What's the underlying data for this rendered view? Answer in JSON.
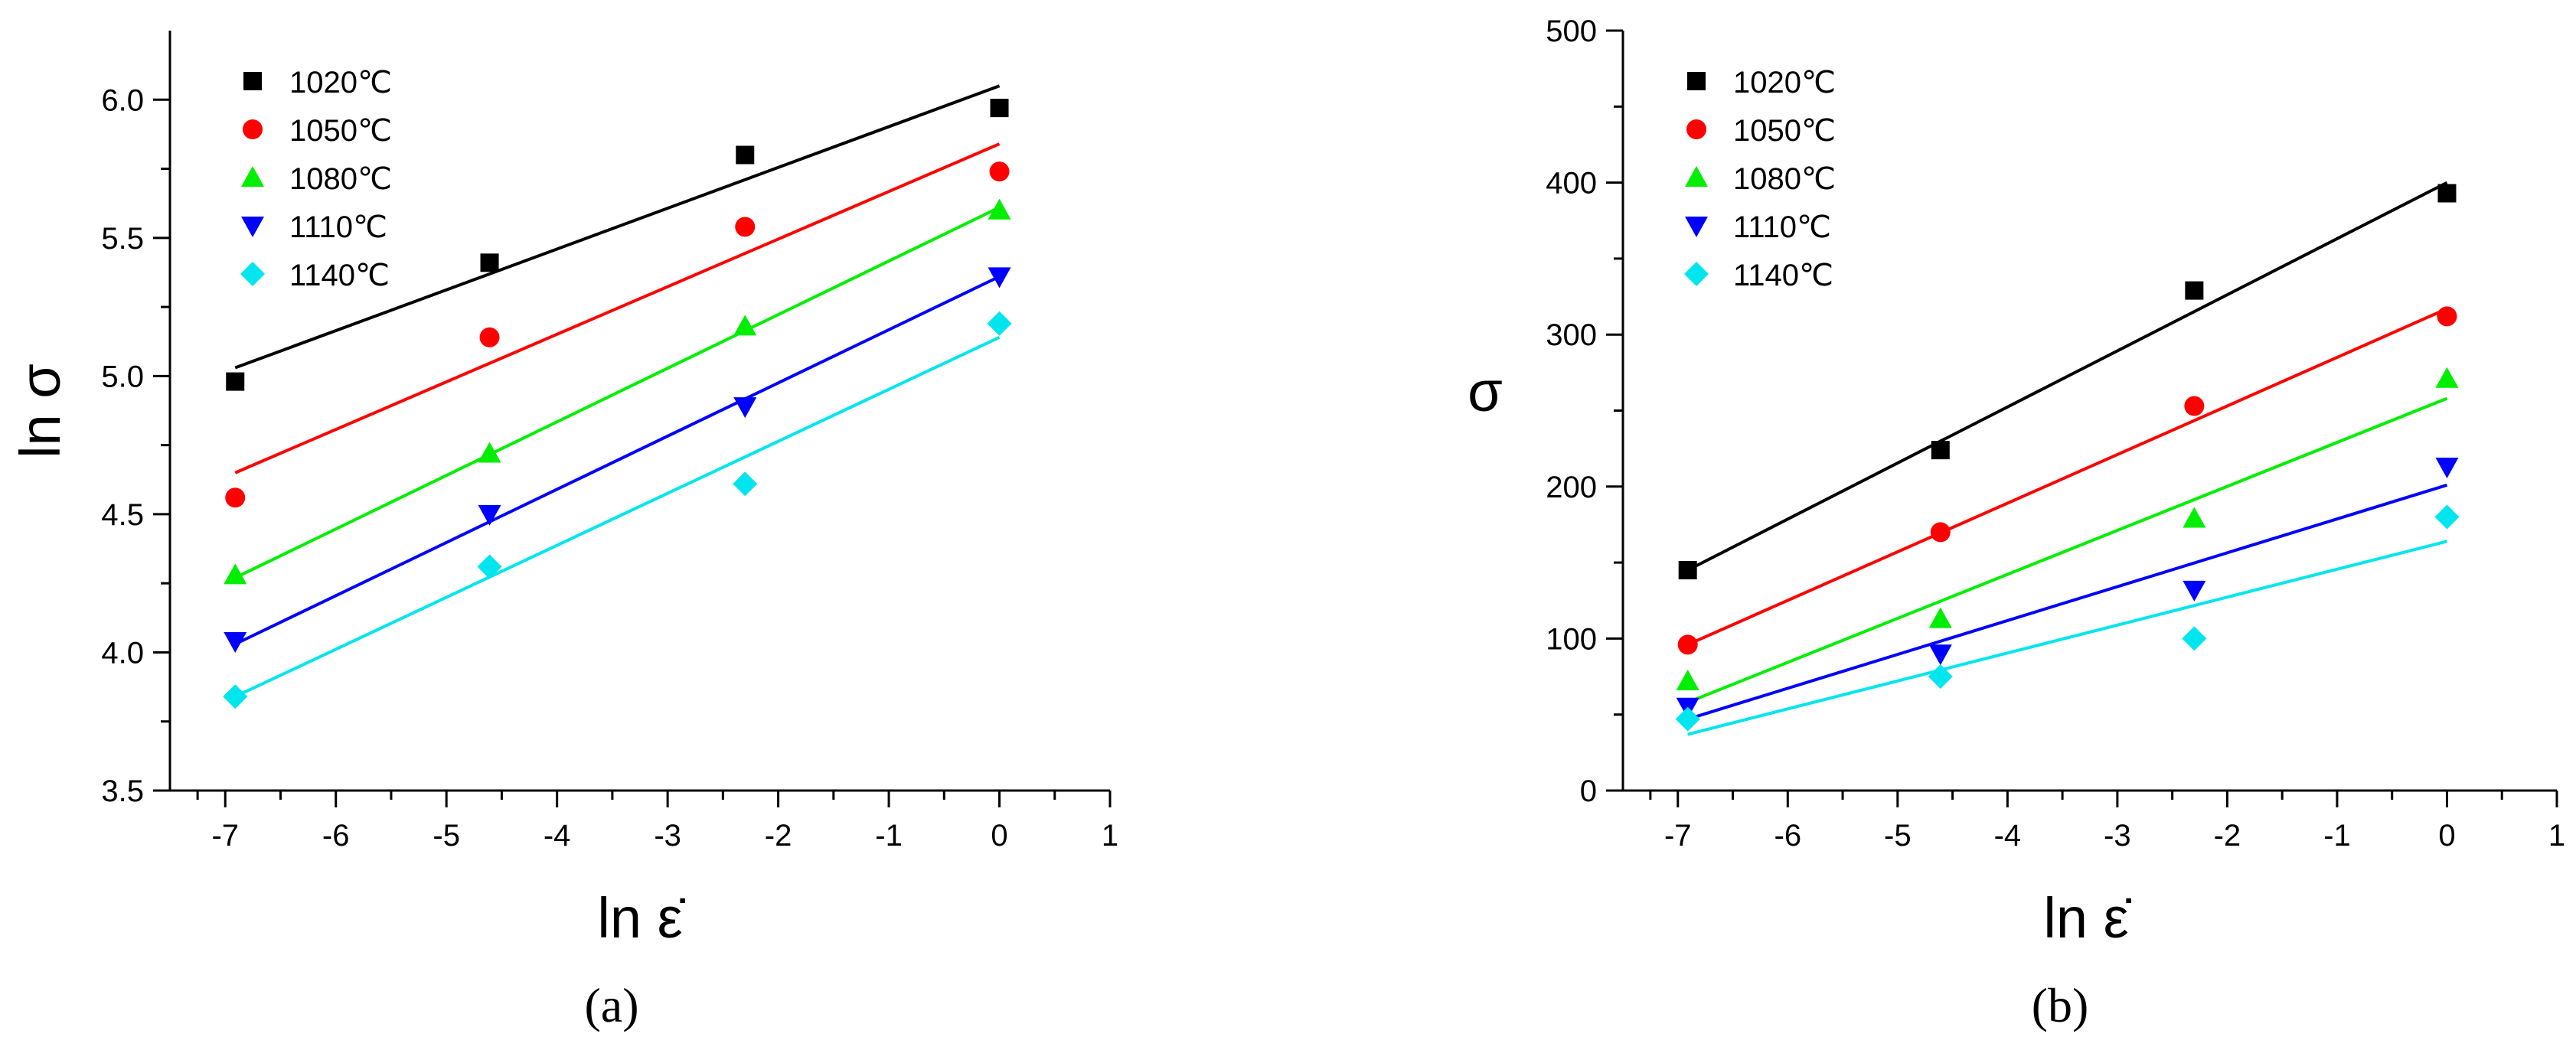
{
  "colors": {
    "1020": "#000000",
    "1050": "#ff0000",
    "1080": "#00ee00",
    "1110": "#0000ff",
    "1140": "#00e5ee"
  },
  "chart_data": [
    {
      "panel": "(a)",
      "panel_letter": "a",
      "type": "scatter",
      "xlabel": "ln ε̇",
      "ylabel": "ln σ",
      "xlim": [
        -7.5,
        1
      ],
      "ylim": [
        3.5,
        6.25
      ],
      "xticks": [
        -7,
        -6,
        -5,
        -4,
        -3,
        -2,
        -1,
        0,
        1
      ],
      "yticks": [
        3.5,
        4.0,
        4.5,
        5.0,
        5.5,
        6.0
      ],
      "ytick_labels": [
        "3.5",
        "4.0",
        "4.5",
        "5.0",
        "5.5",
        "6.0"
      ],
      "legend_position": "top-left",
      "series": [
        {
          "name": "1020℃",
          "marker": "square",
          "color": "#000000",
          "x": [
            -6.91,
            -4.61,
            -2.3,
            0
          ],
          "y": [
            4.98,
            5.41,
            5.8,
            5.97
          ],
          "fit": {
            "x": [
              -6.91,
              0
            ],
            "y": [
              5.03,
              6.05
            ]
          }
        },
        {
          "name": "1050℃",
          "marker": "circle",
          "color": "#ff0000",
          "x": [
            -6.91,
            -4.61,
            -2.3,
            0
          ],
          "y": [
            4.56,
            5.14,
            5.54,
            5.74
          ],
          "fit": {
            "x": [
              -6.91,
              0
            ],
            "y": [
              4.65,
              5.84
            ]
          }
        },
        {
          "name": "1080℃",
          "marker": "triangle-up",
          "color": "#00ee00",
          "x": [
            -6.91,
            -4.61,
            -2.3,
            0
          ],
          "y": [
            4.28,
            4.72,
            5.18,
            5.6
          ],
          "fit": {
            "x": [
              -6.91,
              0
            ],
            "y": [
              4.27,
              5.61
            ]
          }
        },
        {
          "name": "1110℃",
          "marker": "triangle-down",
          "color": "#0000ff",
          "x": [
            -6.91,
            -4.61,
            -2.3,
            0
          ],
          "y": [
            4.04,
            4.5,
            4.89,
            5.36
          ],
          "fit": {
            "x": [
              -6.91,
              0
            ],
            "y": [
              4.03,
              5.36
            ]
          }
        },
        {
          "name": "1140℃",
          "marker": "diamond",
          "color": "#00e5ee",
          "x": [
            -6.91,
            -4.61,
            -2.3,
            0
          ],
          "y": [
            3.84,
            4.31,
            4.61,
            5.19
          ],
          "fit": {
            "x": [
              -6.91,
              0
            ],
            "y": [
              3.84,
              5.14
            ]
          }
        }
      ]
    },
    {
      "panel": "(b)",
      "panel_letter": "b",
      "type": "scatter",
      "xlabel": "ln ε̇",
      "ylabel": "σ",
      "xlim": [
        -7.5,
        1
      ],
      "ylim": [
        0,
        500
      ],
      "xticks": [
        -7,
        -6,
        -5,
        -4,
        -3,
        -2,
        -1,
        0,
        1
      ],
      "yticks": [
        0,
        100,
        200,
        300,
        400,
        500
      ],
      "ytick_labels": [
        "0",
        "100",
        "200",
        "300",
        "400",
        "500"
      ],
      "legend_position": "top-left",
      "series": [
        {
          "name": "1020℃",
          "marker": "square",
          "color": "#000000",
          "x": [
            -6.91,
            -4.61,
            -2.3,
            0
          ],
          "y": [
            145,
            224,
            329,
            393
          ],
          "fit": {
            "x": [
              -6.91,
              0
            ],
            "y": [
              145,
              400
            ]
          }
        },
        {
          "name": "1050℃",
          "marker": "circle",
          "color": "#ff0000",
          "x": [
            -6.91,
            -4.61,
            -2.3,
            0
          ],
          "y": [
            96,
            170,
            253,
            312
          ],
          "fit": {
            "x": [
              -6.91,
              0
            ],
            "y": [
              96,
              317
            ]
          }
        },
        {
          "name": "1080℃",
          "marker": "triangle-up",
          "color": "#00ee00",
          "x": [
            -6.91,
            -4.61,
            -2.3,
            0
          ],
          "y": [
            72,
            113,
            179,
            271
          ],
          "fit": {
            "x": [
              -6.91,
              0
            ],
            "y": [
              58,
              258
            ]
          }
        },
        {
          "name": "1110℃",
          "marker": "triangle-down",
          "color": "#0000ff",
          "x": [
            -6.91,
            -4.61,
            -2.3,
            0
          ],
          "y": [
            55,
            90,
            132,
            213
          ],
          "fit": {
            "x": [
              -6.91,
              0
            ],
            "y": [
              47,
              201
            ]
          }
        },
        {
          "name": "1140℃",
          "marker": "diamond",
          "color": "#00e5ee",
          "x": [
            -6.91,
            -4.61,
            -2.3,
            0
          ],
          "y": [
            47,
            75,
            100,
            180
          ],
          "fit": {
            "x": [
              -6.91,
              0
            ],
            "y": [
              37,
              164
            ]
          }
        }
      ]
    }
  ]
}
